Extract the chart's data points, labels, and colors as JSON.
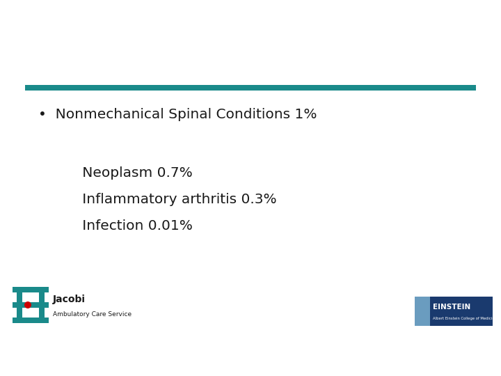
{
  "background_color": "#ffffff",
  "teal_bar_color": "#1a8a8a",
  "bullet_line": "•  Nonmechanical Spinal Conditions 1%",
  "sub_line1": "      Neoplasm 0.7%",
  "sub_line2": "      Inflammatory arthritis 0.3%",
  "sub_line3": "      Infection 0.01%",
  "text_color": "#1a1a1a",
  "jacobi_text": "Jacobi",
  "ambulatory_text": "Ambulatory Care Service",
  "jacobi_color": "#1a1a1a",
  "teal_logo_color": "#1a8a8a",
  "red_dot_color": "#cc0000",
  "einstein_bg_color": "#1a3a6e",
  "einstein_left_color": "#6a9cbf",
  "einstein_text": "EINSTEIN",
  "einstein_sub_text": "Albert Einstein College of Medicine\nof Yeshiva University"
}
